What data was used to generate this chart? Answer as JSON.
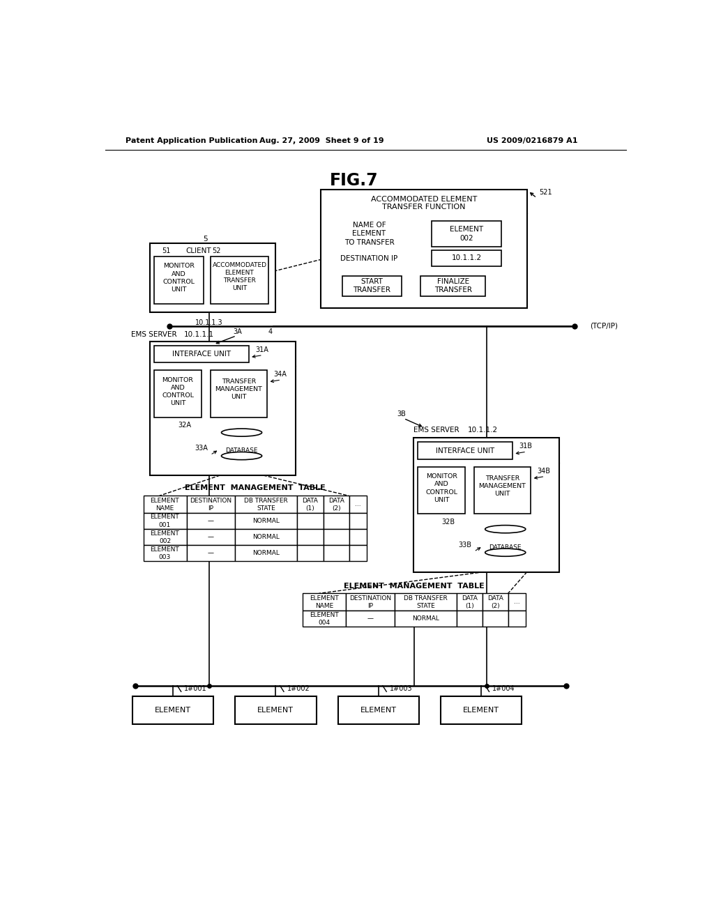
{
  "title": "FIG.7",
  "header_left": "Patent Application Publication",
  "header_middle": "Aug. 27, 2009  Sheet 9 of 19",
  "header_right": "US 2009/0216879 A1",
  "bg_color": "#ffffff",
  "fg_color": "#000000",
  "fig_w": 1024,
  "fig_h": 1320
}
